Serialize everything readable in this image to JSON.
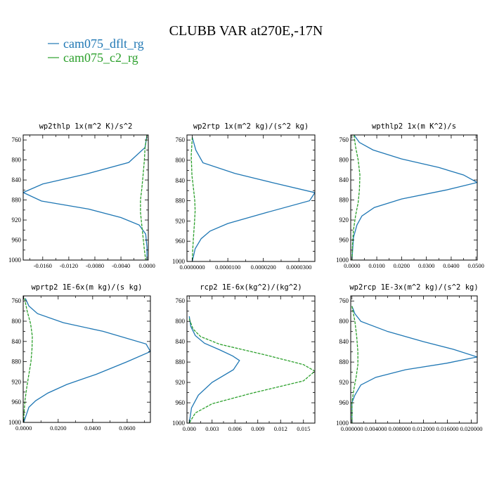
{
  "title": "CLUBB VAR at270E,-17N",
  "legend": [
    {
      "label": "cam075_dflt_rg",
      "color": "#1f77b4",
      "dashed": false
    },
    {
      "label": "cam075_c2_rg",
      "color": "#2ca02c",
      "dashed": true
    }
  ],
  "chart_data": [
    {
      "type": "line",
      "title": "wp2thlp  1x(m^2 K)/s^2",
      "xlim": [
        -0.019,
        0.0002
      ],
      "ylim": [
        1000,
        750
      ],
      "x_ticks": [
        -0.016,
        -0.012,
        -0.008,
        -0.004,
        0.0
      ],
      "x_tick_labels": [
        "-0.0160",
        "-0.0120",
        "-0.0080",
        "-0.0040",
        "0.0000"
      ],
      "y_ticks": [
        760,
        800,
        840,
        880,
        920,
        960,
        1000
      ],
      "series": [
        {
          "name": "cam075_dflt_rg",
          "points": [
            [
              0.0,
              750
            ],
            [
              -0.0003,
              775
            ],
            [
              -0.0028,
              805
            ],
            [
              -0.0093,
              828
            ],
            [
              -0.016,
              848
            ],
            [
              -0.019,
              865
            ],
            [
              -0.0162,
              882
            ],
            [
              -0.009,
              898
            ],
            [
              -0.004,
              915
            ],
            [
              -0.0012,
              930
            ],
            [
              -0.0002,
              948
            ],
            [
              0.0,
              975
            ],
            [
              0.0,
              1000
            ]
          ]
        },
        {
          "name": "cam075_c2_rg",
          "points": [
            [
              0.0,
              750
            ],
            [
              -0.0003,
              775
            ],
            [
              -0.0004,
              800
            ],
            [
              -0.0006,
              830
            ],
            [
              -0.0008,
              858
            ],
            [
              -0.001,
              880
            ],
            [
              -0.001,
              905
            ],
            [
              -0.0008,
              930
            ],
            [
              -0.0006,
              955
            ],
            [
              -0.0004,
              980
            ],
            [
              -0.0002,
              1000
            ]
          ]
        }
      ]
    },
    {
      "type": "line",
      "title": "wp2rtp  1x(m^2 kg)/(s^2 kg)",
      "xlim": [
        -1.5e-06,
        3.45e-05
      ],
      "ylim": [
        1000,
        750
      ],
      "x_ticks": [
        0.0,
        1e-05,
        2e-05,
        3e-05
      ],
      "x_tick_labels": [
        "0.0000000",
        "0.0000100",
        "0.0000200",
        "0.0000300"
      ],
      "y_ticks": [
        760,
        800,
        840,
        880,
        920,
        960,
        1000
      ],
      "series": [
        {
          "name": "cam075_dflt_rg",
          "points": [
            [
              0.0,
              755
            ],
            [
              1e-06,
              780
            ],
            [
              3e-06,
              805
            ],
            [
              1.2e-05,
              826
            ],
            [
              2.3e-05,
              845
            ],
            [
              3.45e-05,
              864
            ],
            [
              3.3e-05,
              880
            ],
            [
              2e-05,
              905
            ],
            [
              1e-05,
              925
            ],
            [
              5e-06,
              940
            ],
            [
              2.5e-06,
              955
            ],
            [
              8e-07,
              975
            ],
            [
              0.0,
              1000
            ]
          ]
        },
        {
          "name": "cam075_c2_rg",
          "points": [
            [
              0.0,
              755
            ],
            [
              -3e-07,
              790
            ],
            [
              -1e-07,
              830
            ],
            [
              4e-07,
              860
            ],
            [
              7e-07,
              880
            ],
            [
              8e-07,
              900
            ],
            [
              6e-07,
              925
            ],
            [
              3e-07,
              955
            ],
            [
              1e-07,
              980
            ],
            [
              0.0,
              1000
            ]
          ]
        }
      ]
    },
    {
      "type": "line",
      "title": "wpthlp2  1x(m K^2)/s",
      "xlim": [
        -0.0005,
        0.0505
      ],
      "ylim": [
        1000,
        750
      ],
      "x_ticks": [
        0.0,
        0.01,
        0.02,
        0.03,
        0.04,
        0.05
      ],
      "x_tick_labels": [
        "0.0000",
        "0.0100",
        "0.0200",
        "0.0300",
        "0.0400",
        "0.0500"
      ],
      "y_ticks": [
        760,
        800,
        840,
        880,
        920,
        960,
        1000
      ],
      "series": [
        {
          "name": "cam075_dflt_rg",
          "points": [
            [
              0.0008,
              750
            ],
            [
              0.003,
              765
            ],
            [
              0.0085,
              780
            ],
            [
              0.02,
              798
            ],
            [
              0.035,
              815
            ],
            [
              0.045,
              830
            ],
            [
              0.0505,
              845
            ],
            [
              0.038,
              860
            ],
            [
              0.02,
              878
            ],
            [
              0.009,
              895
            ],
            [
              0.004,
              912
            ],
            [
              0.002,
              930
            ],
            [
              0.0006,
              955
            ],
            [
              0.0,
              1000
            ]
          ]
        },
        {
          "name": "cam075_c2_rg",
          "points": [
            [
              0.0008,
              750
            ],
            [
              0.0015,
              775
            ],
            [
              0.0025,
              800
            ],
            [
              0.0032,
              830
            ],
            [
              0.003,
              860
            ],
            [
              0.0025,
              885
            ],
            [
              0.0015,
              910
            ],
            [
              0.0006,
              940
            ],
            [
              0.0002,
              970
            ],
            [
              0.0,
              1000
            ]
          ]
        }
      ]
    },
    {
      "type": "line",
      "title": "wprtp2  1E-6x(m kg)/(s kg)",
      "xlim": [
        -0.0003,
        0.0735
      ],
      "ylim": [
        1000,
        750
      ],
      "x_ticks": [
        0.0,
        0.02,
        0.04,
        0.06
      ],
      "x_tick_labels": [
        "0.0000",
        "0.0200",
        "0.0400",
        "0.0600"
      ],
      "y_ticks": [
        760,
        800,
        840,
        880,
        920,
        960,
        1000
      ],
      "series": [
        {
          "name": "cam075_dflt_rg",
          "points": [
            [
              0.001,
              755
            ],
            [
              0.003,
              770
            ],
            [
              0.008,
              785
            ],
            [
              0.023,
              803
            ],
            [
              0.046,
              820
            ],
            [
              0.071,
              845
            ],
            [
              0.0735,
              860
            ],
            [
              0.06,
              880
            ],
            [
              0.042,
              905
            ],
            [
              0.025,
              925
            ],
            [
              0.014,
              942
            ],
            [
              0.007,
              957
            ],
            [
              0.003,
              970
            ],
            [
              0.0015,
              985
            ],
            [
              0.0,
              1000
            ]
          ]
        },
        {
          "name": "cam075_c2_rg",
          "points": [
            [
              0.0005,
              755
            ],
            [
              0.002,
              780
            ],
            [
              0.004,
              805
            ],
            [
              0.005,
              830
            ],
            [
              0.0048,
              855
            ],
            [
              0.0042,
              880
            ],
            [
              0.003,
              905
            ],
            [
              0.0018,
              930
            ],
            [
              0.0008,
              955
            ],
            [
              0.0002,
              980
            ],
            [
              0.0,
              1000
            ]
          ]
        }
      ]
    },
    {
      "type": "line",
      "title": "rcp2  1E-6x(kg^2)/(kg^2)",
      "xlim": [
        -0.0003,
        0.0165
      ],
      "ylim": [
        1000,
        750
      ],
      "x_ticks": [
        0.0,
        0.003,
        0.006,
        0.009,
        0.012,
        0.015
      ],
      "x_tick_labels": [
        "0.000",
        "0.003",
        "0.006",
        "0.009",
        "0.012",
        "0.015"
      ],
      "y_ticks": [
        760,
        800,
        840,
        880,
        920,
        960,
        1000
      ],
      "series": [
        {
          "name": "cam075_dflt_rg",
          "points": [
            [
              0.0,
              790
            ],
            [
              0.0002,
              810
            ],
            [
              0.0008,
              828
            ],
            [
              0.002,
              843
            ],
            [
              0.004,
              856
            ],
            [
              0.0057,
              868
            ],
            [
              0.0066,
              877
            ],
            [
              0.0058,
              895
            ],
            [
              0.003,
              920
            ],
            [
              0.0012,
              945
            ],
            [
              0.0003,
              970
            ],
            [
              0.0,
              1000
            ]
          ]
        },
        {
          "name": "cam075_c2_rg",
          "points": [
            [
              0.0,
              795
            ],
            [
              0.0005,
              815
            ],
            [
              0.0015,
              830
            ],
            [
              0.004,
              845
            ],
            [
              0.01,
              866
            ],
            [
              0.015,
              885
            ],
            [
              0.0165,
              898
            ],
            [
              0.015,
              917
            ],
            [
              0.008,
              942
            ],
            [
              0.003,
              962
            ],
            [
              0.0008,
              980
            ],
            [
              0.0,
              1000
            ]
          ]
        }
      ]
    },
    {
      "type": "line",
      "title": "wp2rcp  1E-3x(m^2 kg)/(s^2 kg)",
      "xlim": [
        -0.0002,
        0.021
      ],
      "ylim": [
        1000,
        750
      ],
      "x_ticks": [
        0.0,
        0.004,
        0.008,
        0.012,
        0.016,
        0.02
      ],
      "x_tick_labels": [
        "0.000000",
        "0.004000",
        "0.008000",
        "0.012000",
        "0.016000",
        "0.020000"
      ],
      "y_ticks": [
        760,
        800,
        840,
        880,
        920,
        960,
        1000
      ],
      "series": [
        {
          "name": "cam075_dflt_rg",
          "points": [
            [
              0.0,
              770
            ],
            [
              0.0005,
              785
            ],
            [
              0.0015,
              800
            ],
            [
              0.006,
              820
            ],
            [
              0.012,
              840
            ],
            [
              0.017,
              855
            ],
            [
              0.021,
              870
            ],
            [
              0.016,
              882
            ],
            [
              0.009,
              895
            ],
            [
              0.004,
              910
            ],
            [
              0.0015,
              925
            ],
            [
              0.0005,
              945
            ],
            [
              0.0,
              960
            ],
            [
              0.0,
              1000
            ]
          ]
        },
        {
          "name": "cam075_c2_rg",
          "points": [
            [
              0.0,
              770
            ],
            [
              0.0005,
              800
            ],
            [
              0.0008,
              830
            ],
            [
              0.001,
              860
            ],
            [
              0.001,
              885
            ],
            [
              0.0007,
              910
            ],
            [
              0.0003,
              935
            ],
            [
              0.0,
              960
            ],
            [
              0.0,
              1000
            ]
          ]
        }
      ]
    }
  ]
}
